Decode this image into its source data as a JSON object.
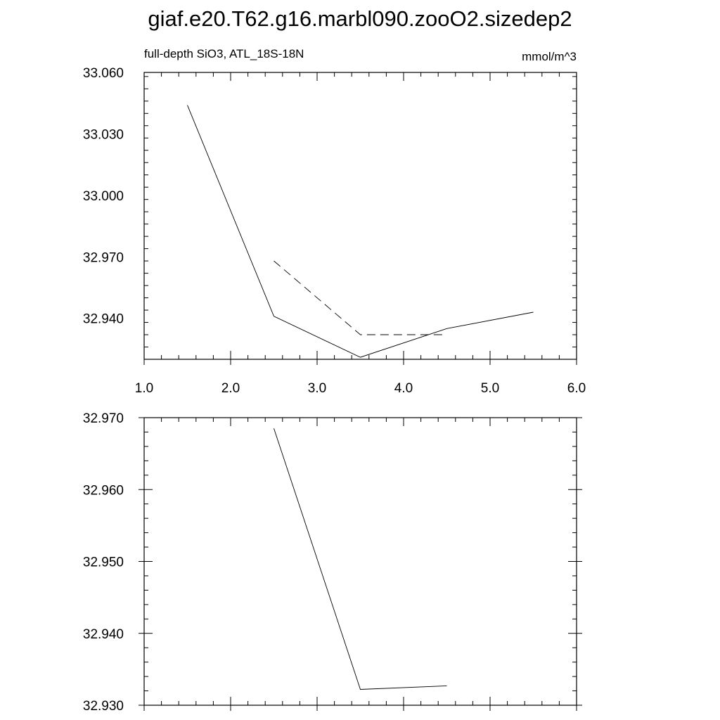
{
  "title": "giaf.e20.T62.g16.marbl090.zooO2.sizedep2",
  "chart_data": [
    {
      "type": "line",
      "left_label": "full-depth SiO3, ATL_18S-18N",
      "right_label": "mmol/m^3",
      "xlim": [
        1.0,
        6.0
      ],
      "ylim": [
        32.92,
        33.06
      ],
      "x_ticks": [
        "1.0",
        "2.0",
        "3.0",
        "4.0",
        "5.0",
        "6.0"
      ],
      "y_ticks": [
        "32.940",
        "32.970",
        "33.000",
        "33.030",
        "33.060"
      ],
      "grid": false,
      "series": [
        {
          "style": "solid",
          "x": [
            1.5,
            2.5,
            3.5,
            4.5,
            5.5
          ],
          "y": [
            33.044,
            32.941,
            32.921,
            32.935,
            32.943
          ]
        },
        {
          "style": "dashed",
          "x": [
            2.5,
            3.5,
            4.5
          ],
          "y": [
            32.968,
            32.932,
            32.932
          ]
        }
      ]
    },
    {
      "type": "line",
      "xlim": [
        1.0,
        6.0
      ],
      "ylim": [
        32.93,
        32.97
      ],
      "x_ticks": [],
      "y_ticks": [
        "32.930",
        "32.940",
        "32.950",
        "32.960",
        "32.970"
      ],
      "grid": false,
      "series": [
        {
          "style": "solid",
          "x": [
            2.5,
            3.5,
            4.5
          ],
          "y": [
            32.9685,
            32.9322,
            32.9327
          ]
        }
      ]
    }
  ]
}
